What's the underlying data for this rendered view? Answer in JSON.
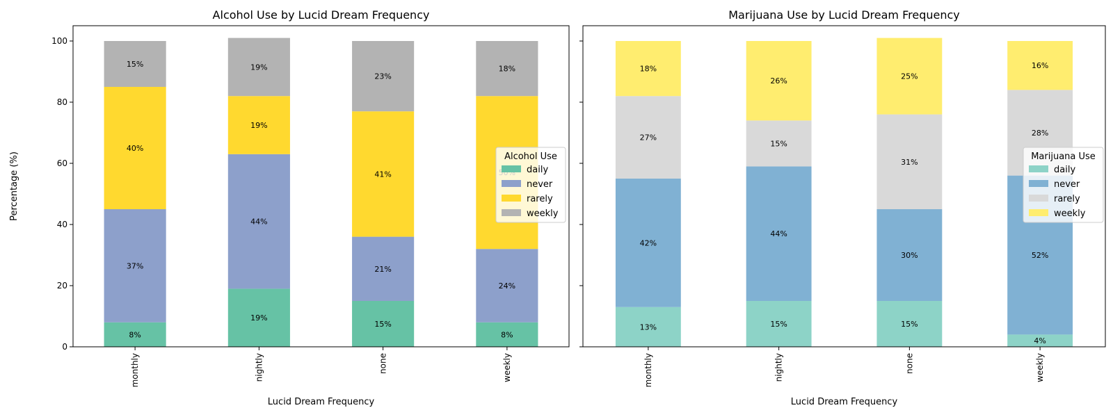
{
  "chart_data": [
    {
      "type": "bar",
      "stacked": true,
      "title": "Alcohol Use by Lucid Dream Frequency",
      "xlabel": "Lucid Dream Frequency",
      "ylabel": "Percentage (%)",
      "ylim": [
        0,
        105
      ],
      "yticks": [
        "0",
        "20",
        "40",
        "60",
        "80",
        "100"
      ],
      "categories": [
        "monthly",
        "nightly",
        "none",
        "weekly"
      ],
      "legend_title": "Alcohol Use",
      "legend_position": "center-right",
      "series": [
        {
          "name": "daily",
          "color": "#66c2a5",
          "values": [
            8,
            19,
            15,
            8
          ],
          "labels": [
            "8%",
            "19%",
            "15%",
            "8%"
          ]
        },
        {
          "name": "never",
          "color": "#8da0cb",
          "values": [
            37,
            44,
            21,
            24
          ],
          "labels": [
            "37%",
            "44%",
            "21%",
            "24%"
          ]
        },
        {
          "name": "rarely",
          "color": "#ffd92f",
          "values": [
            40,
            19,
            41,
            50
          ],
          "labels": [
            "40%",
            "19%",
            "41%",
            "50%"
          ]
        },
        {
          "name": "weekly",
          "color": "#b3b3b3",
          "values": [
            15,
            19,
            23,
            18
          ],
          "labels": [
            "15%",
            "19%",
            "23%",
            "18%"
          ]
        }
      ]
    },
    {
      "type": "bar",
      "stacked": true,
      "title": "Marijuana Use by Lucid Dream Frequency",
      "xlabel": "Lucid Dream Frequency",
      "ylabel": "",
      "ylim": [
        0,
        105
      ],
      "yticks": [
        "0",
        "20",
        "40",
        "60",
        "80",
        "100"
      ],
      "categories": [
        "monthly",
        "nightly",
        "none",
        "weekly"
      ],
      "legend_title": "Marijuana Use",
      "legend_position": "center-right",
      "series": [
        {
          "name": "daily",
          "color": "#8dd3c7",
          "values": [
            13,
            15,
            15,
            4
          ],
          "labels": [
            "13%",
            "15%",
            "15%",
            "4%"
          ]
        },
        {
          "name": "never",
          "color": "#80b1d3",
          "values": [
            42,
            44,
            30,
            52
          ],
          "labels": [
            "42%",
            "44%",
            "30%",
            "52%"
          ]
        },
        {
          "name": "rarely",
          "color": "#d9d9d9",
          "values": [
            27,
            15,
            31,
            28
          ],
          "labels": [
            "27%",
            "15%",
            "31%",
            "28%"
          ]
        },
        {
          "name": "weekly",
          "color": "#ffed6f",
          "values": [
            18,
            26,
            25,
            16
          ],
          "labels": [
            "18%",
            "26%",
            "25%",
            "16%"
          ]
        }
      ]
    }
  ]
}
